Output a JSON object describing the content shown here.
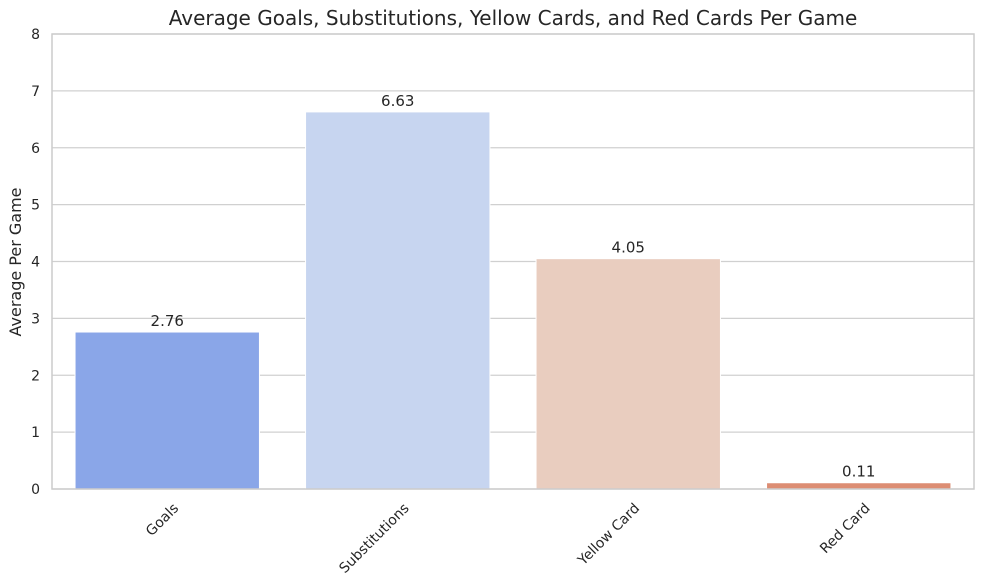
{
  "chart_data": {
    "type": "bar",
    "title": "Average Goals, Substitutions, Yellow Cards, and Red Cards Per Game",
    "xlabel": "",
    "ylabel": "Average Per Game",
    "categories": [
      "Goals",
      "Substitutions",
      "Yellow Card",
      "Red Card"
    ],
    "values": [
      2.76,
      6.63,
      4.05,
      0.11
    ],
    "data_labels": [
      "2.76",
      "6.63",
      "4.05",
      "0.11"
    ],
    "colors": [
      "#8aa6e8",
      "#c7d5f0",
      "#e9cdbf",
      "#dc8d73"
    ],
    "ylim": [
      0,
      8
    ],
    "yticks": [
      0,
      1,
      2,
      3,
      4,
      5,
      6,
      7,
      8
    ],
    "grid": true,
    "legend": "none"
  }
}
